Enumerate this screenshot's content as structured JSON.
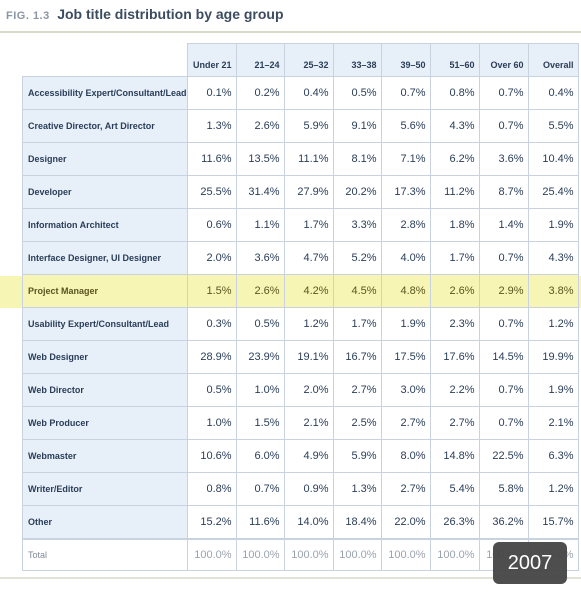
{
  "figure": {
    "label": "FIG. 1.3",
    "title": "Job title distribution by age group"
  },
  "badge": {
    "year": "2007"
  },
  "chart_data": {
    "type": "table",
    "title": "Job title distribution by age group",
    "columns": [
      "Under 21",
      "21–24",
      "25–32",
      "33–38",
      "39–50",
      "51–60",
      "Over 60",
      "Overall"
    ],
    "highlighted_row": "Project Manager",
    "rows": [
      {
        "label": "Accessibility Expert/Consultant/Lead",
        "values": [
          "0.1%",
          "0.2%",
          "0.4%",
          "0.5%",
          "0.7%",
          "0.8%",
          "0.7%",
          "0.4%"
        ]
      },
      {
        "label": "Creative Director, Art Director",
        "values": [
          "1.3%",
          "2.6%",
          "5.9%",
          "9.1%",
          "5.6%",
          "4.3%",
          "0.7%",
          "5.5%"
        ]
      },
      {
        "label": "Designer",
        "values": [
          "11.6%",
          "13.5%",
          "11.1%",
          "8.1%",
          "7.1%",
          "6.2%",
          "3.6%",
          "10.4%"
        ]
      },
      {
        "label": "Developer",
        "values": [
          "25.5%",
          "31.4%",
          "27.9%",
          "20.2%",
          "17.3%",
          "11.2%",
          "8.7%",
          "25.4%"
        ]
      },
      {
        "label": "Information Architect",
        "values": [
          "0.6%",
          "1.1%",
          "1.7%",
          "3.3%",
          "2.8%",
          "1.8%",
          "1.4%",
          "1.9%"
        ]
      },
      {
        "label": "Interface Designer, UI Designer",
        "values": [
          "2.0%",
          "3.6%",
          "4.7%",
          "5.2%",
          "4.0%",
          "1.7%",
          "0.7%",
          "4.3%"
        ]
      },
      {
        "label": "Project Manager",
        "values": [
          "1.5%",
          "2.6%",
          "4.2%",
          "4.5%",
          "4.8%",
          "2.6%",
          "2.9%",
          "3.8%"
        ]
      },
      {
        "label": "Usability Expert/Consultant/Lead",
        "values": [
          "0.3%",
          "0.5%",
          "1.2%",
          "1.7%",
          "1.9%",
          "2.3%",
          "0.7%",
          "1.2%"
        ]
      },
      {
        "label": "Web Designer",
        "values": [
          "28.9%",
          "23.9%",
          "19.1%",
          "16.7%",
          "17.5%",
          "17.6%",
          "14.5%",
          "19.9%"
        ]
      },
      {
        "label": "Web Director",
        "values": [
          "0.5%",
          "1.0%",
          "2.0%",
          "2.7%",
          "3.0%",
          "2.2%",
          "0.7%",
          "1.9%"
        ]
      },
      {
        "label": "Web Producer",
        "values": [
          "1.0%",
          "1.5%",
          "2.1%",
          "2.5%",
          "2.7%",
          "2.7%",
          "0.7%",
          "2.1%"
        ]
      },
      {
        "label": "Webmaster",
        "values": [
          "10.6%",
          "6.0%",
          "4.9%",
          "5.9%",
          "8.0%",
          "14.8%",
          "22.5%",
          "6.3%"
        ]
      },
      {
        "label": "Writer/Editor",
        "values": [
          "0.8%",
          "0.7%",
          "0.9%",
          "1.3%",
          "2.7%",
          "5.4%",
          "5.8%",
          "1.2%"
        ]
      },
      {
        "label": "Other",
        "values": [
          "15.2%",
          "11.6%",
          "14.0%",
          "18.4%",
          "22.0%",
          "26.3%",
          "36.2%",
          "15.7%"
        ]
      }
    ],
    "total": {
      "label": "Total",
      "values": [
        "100.0%",
        "100.0%",
        "100.0%",
        "100.0%",
        "100.0%",
        "100.0%",
        "100.0%",
        "100.0%"
      ]
    }
  }
}
